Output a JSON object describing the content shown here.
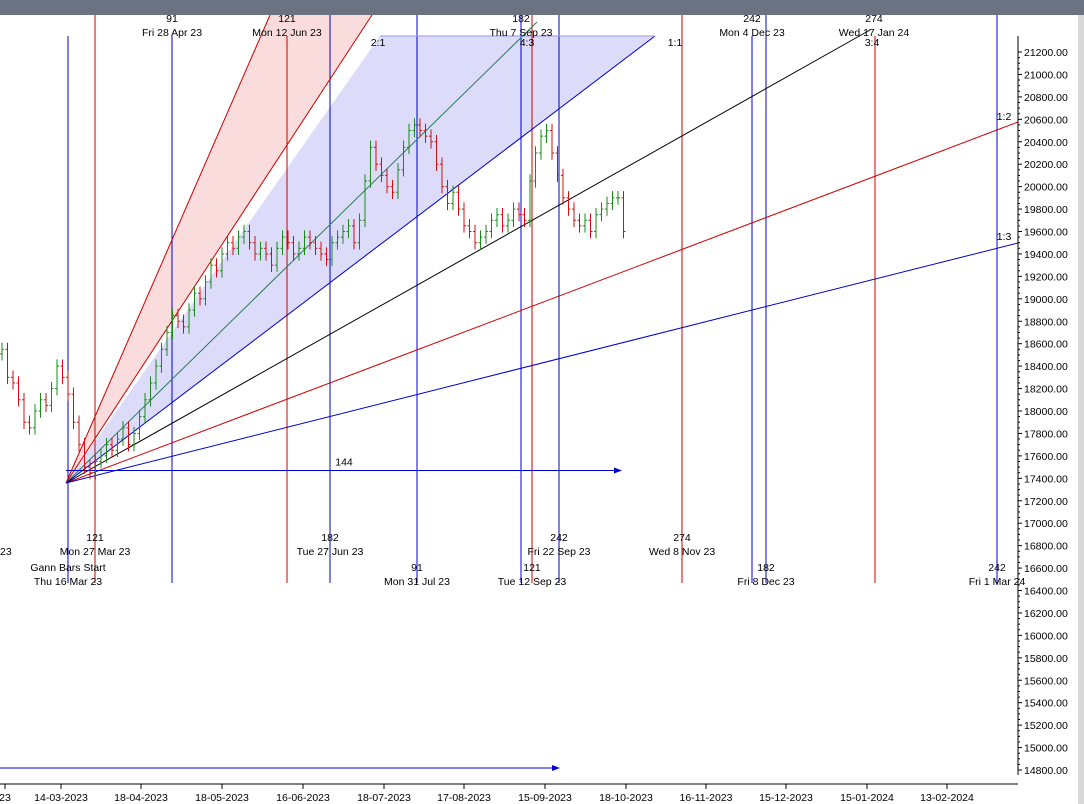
{
  "chart_data": {
    "type": "candlestick-ohlc-with-gann-fan",
    "title": "",
    "y_axis": {
      "min": 14700,
      "max": 21300,
      "tick_step": 200,
      "tick_labels": [
        "14800.00",
        "15000.00",
        "15200.00",
        "15400.00",
        "15600.00",
        "15800.00",
        "16000.00",
        "16200.00",
        "16400.00",
        "16600.00",
        "16800.00",
        "17000.00",
        "17200.00",
        "17400.00",
        "17600.00",
        "17800.00",
        "18000.00",
        "18200.00",
        "18400.00",
        "18600.00",
        "18800.00",
        "19000.00",
        "19200.00",
        "19400.00",
        "19600.00",
        "19800.00",
        "20000.00",
        "20200.00",
        "20400.00",
        "20600.00",
        "20800.00",
        "21000.00",
        "21200.00"
      ]
    },
    "x_axis": {
      "tick_labels": [
        "23",
        "14-03-2023",
        "18-04-2023",
        "18-05-2023",
        "16-06-2023",
        "18-07-2023",
        "17-08-2023",
        "15-09-2023",
        "18-10-2023",
        "16-11-2023",
        "15-12-2023",
        "15-01-2024",
        "13-02-2024"
      ]
    },
    "gann_fan": {
      "start_label": "Gann Bars Start",
      "start_date": "Thu 16 Mar 23",
      "origin_price": 17350,
      "angles": [
        "2:1",
        "4:3",
        "1:1",
        "3:4",
        "1:2",
        "1:3"
      ]
    },
    "horizontal_marker": {
      "label": "144",
      "price": 17470
    },
    "bottom_arrow": true,
    "cycle_lines": [
      {
        "bars": "91",
        "date": "Fri 28 Apr 23",
        "color": "#0000cc",
        "pos": "top"
      },
      {
        "bars": "121",
        "date": "Mon 12 Jun 23",
        "color": "#cc0000",
        "pos": "top"
      },
      {
        "bars": "182",
        "date": "Thu 7 Sep 23",
        "color": "#cc0000",
        "pos": "top"
      },
      {
        "bars": "242",
        "date": "Mon 4 Dec 23",
        "color": "#0000cc",
        "pos": "top"
      },
      {
        "bars": "274",
        "date": "Wed 17 Jan 24",
        "color": "#cc0000",
        "pos": "top"
      },
      {
        "bars": "121",
        "date": "Mon 27 Mar 23",
        "color": "#cc0000",
        "pos": "mid"
      },
      {
        "bars": "182",
        "date": "Tue 27 Jun 23",
        "color": "#0000cc",
        "pos": "mid"
      },
      {
        "bars": "242",
        "date": "Fri 22 Sep 23",
        "color": "#0000cc",
        "pos": "mid"
      },
      {
        "bars": "274",
        "date": "Wed 8 Nov 23",
        "color": "#cc0000",
        "pos": "mid"
      },
      {
        "bars": "91",
        "date": "Mon 31 Jul 23",
        "color": "#0000cc",
        "pos": "low"
      },
      {
        "bars": "121",
        "date": "Tue 12 Sep 23",
        "color": "#0000cc",
        "pos": "low"
      },
      {
        "bars": "182",
        "date": "Fri 8 Dec 23",
        "color": "#0000cc",
        "pos": "low"
      },
      {
        "bars": "242",
        "date": "Fri 1 Mar 24",
        "color": "#0000cc",
        "pos": "low"
      }
    ],
    "left_clipped_label": "23",
    "price_series": [
      18550,
      18300,
      18250,
      18100,
      17900,
      17850,
      18000,
      18100,
      18050,
      18200,
      18400,
      18300,
      18150,
      17900,
      17700,
      17500,
      17450,
      17550,
      17600,
      17700,
      17650,
      17750,
      17850,
      17700,
      17800,
      17950,
      18100,
      18250,
      18400,
      18550,
      18700,
      18850,
      18800,
      18750,
      18900,
      19050,
      19000,
      19150,
      19300,
      19250,
      19400,
      19500,
      19450,
      19550,
      19600,
      19500,
      19400,
      19450,
      19400,
      19300,
      19450,
      19550,
      19500,
      19400,
      19450,
      19550,
      19500,
      19450,
      19400,
      19350,
      19500,
      19550,
      19600,
      19650,
      19500,
      19700,
      20050,
      20350,
      20200,
      20100,
      20000,
      19950,
      20150,
      20350,
      20500,
      20550,
      20500,
      20450,
      20400,
      20200,
      20000,
      19850,
      19950,
      19800,
      19650,
      19600,
      19500,
      19550,
      19600,
      19700,
      19750,
      19650,
      19700,
      19800,
      19750,
      19700,
      20050,
      20300,
      20450,
      20500,
      20300,
      20100,
      19900,
      19800,
      19700,
      19650,
      19700,
      19600,
      19750,
      19800,
      19850,
      19900,
      19900,
      19600
    ]
  }
}
